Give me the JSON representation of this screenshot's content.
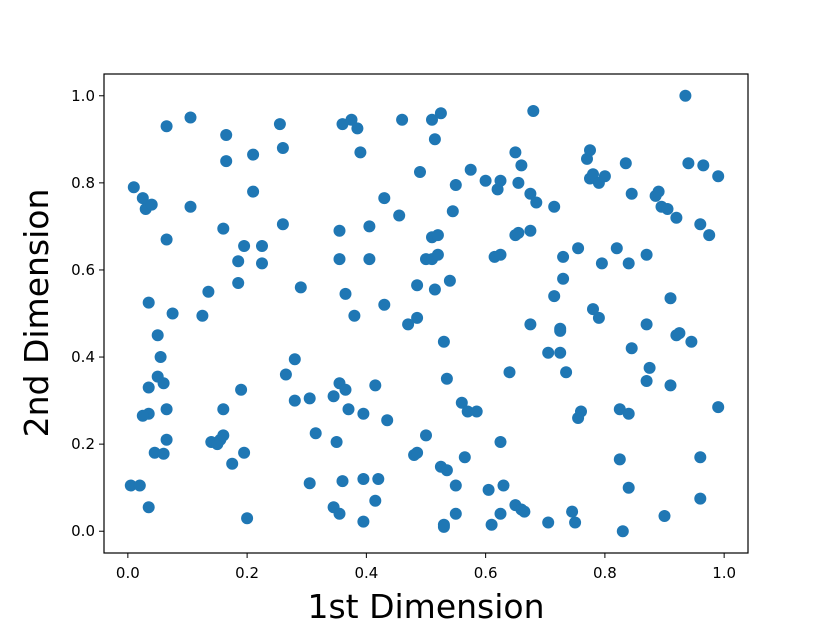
{
  "chart_data": {
    "type": "scatter",
    "title": "",
    "xlabel": "1st Dimension",
    "ylabel": "2nd Dimension",
    "xlim": [
      -0.04,
      1.04
    ],
    "ylim": [
      -0.05,
      1.05
    ],
    "xticks": [
      "0.0",
      "0.2",
      "0.4",
      "0.6",
      "0.8",
      "1.0"
    ],
    "yticks": [
      "0.0",
      "0.2",
      "0.4",
      "0.6",
      "0.8",
      "1.0"
    ],
    "grid": false,
    "marker_color": "#1f77b4",
    "points": [
      [
        0.01,
        0.79
      ],
      [
        0.025,
        0.765
      ],
      [
        0.03,
        0.74
      ],
      [
        0.04,
        0.75
      ],
      [
        0.065,
        0.93
      ],
      [
        0.105,
        0.95
      ],
      [
        0.165,
        0.91
      ],
      [
        0.165,
        0.85
      ],
      [
        0.21,
        0.865
      ],
      [
        0.255,
        0.935
      ],
      [
        0.26,
        0.88
      ],
      [
        0.21,
        0.78
      ],
      [
        0.105,
        0.745
      ],
      [
        0.065,
        0.67
      ],
      [
        0.16,
        0.695
      ],
      [
        0.195,
        0.655
      ],
      [
        0.225,
        0.655
      ],
      [
        0.185,
        0.62
      ],
      [
        0.225,
        0.615
      ],
      [
        0.26,
        0.705
      ],
      [
        0.185,
        0.57
      ],
      [
        0.135,
        0.55
      ],
      [
        0.125,
        0.495
      ],
      [
        0.075,
        0.5
      ],
      [
        0.035,
        0.525
      ],
      [
        0.05,
        0.45
      ],
      [
        0.055,
        0.4
      ],
      [
        0.05,
        0.355
      ],
      [
        0.06,
        0.34
      ],
      [
        0.035,
        0.33
      ],
      [
        0.065,
        0.28
      ],
      [
        0.035,
        0.27
      ],
      [
        0.025,
        0.265
      ],
      [
        0.065,
        0.21
      ],
      [
        0.045,
        0.18
      ],
      [
        0.06,
        0.178
      ],
      [
        0.005,
        0.105
      ],
      [
        0.02,
        0.105
      ],
      [
        0.035,
        0.055
      ],
      [
        0.14,
        0.205
      ],
      [
        0.15,
        0.2
      ],
      [
        0.155,
        0.21
      ],
      [
        0.16,
        0.22
      ],
      [
        0.16,
        0.28
      ],
      [
        0.19,
        0.325
      ],
      [
        0.195,
        0.18
      ],
      [
        0.175,
        0.155
      ],
      [
        0.2,
        0.03
      ],
      [
        0.265,
        0.36
      ],
      [
        0.28,
        0.395
      ],
      [
        0.28,
        0.3
      ],
      [
        0.29,
        0.56
      ],
      [
        0.305,
        0.305
      ],
      [
        0.315,
        0.225
      ],
      [
        0.305,
        0.11
      ],
      [
        0.36,
        0.935
      ],
      [
        0.375,
        0.945
      ],
      [
        0.385,
        0.925
      ],
      [
        0.39,
        0.87
      ],
      [
        0.355,
        0.69
      ],
      [
        0.355,
        0.625
      ],
      [
        0.365,
        0.545
      ],
      [
        0.38,
        0.495
      ],
      [
        0.43,
        0.765
      ],
      [
        0.455,
        0.725
      ],
      [
        0.405,
        0.7
      ],
      [
        0.405,
        0.625
      ],
      [
        0.43,
        0.52
      ],
      [
        0.345,
        0.31
      ],
      [
        0.355,
        0.34
      ],
      [
        0.365,
        0.325
      ],
      [
        0.37,
        0.28
      ],
      [
        0.395,
        0.27
      ],
      [
        0.415,
        0.335
      ],
      [
        0.435,
        0.255
      ],
      [
        0.35,
        0.205
      ],
      [
        0.36,
        0.115
      ],
      [
        0.395,
        0.12
      ],
      [
        0.42,
        0.12
      ],
      [
        0.415,
        0.07
      ],
      [
        0.345,
        0.055
      ],
      [
        0.355,
        0.04
      ],
      [
        0.395,
        0.022
      ],
      [
        0.46,
        0.945
      ],
      [
        0.51,
        0.945
      ],
      [
        0.525,
        0.96
      ],
      [
        0.515,
        0.9
      ],
      [
        0.49,
        0.825
      ],
      [
        0.55,
        0.795
      ],
      [
        0.545,
        0.735
      ],
      [
        0.51,
        0.675
      ],
      [
        0.52,
        0.68
      ],
      [
        0.5,
        0.625
      ],
      [
        0.51,
        0.625
      ],
      [
        0.52,
        0.635
      ],
      [
        0.54,
        0.575
      ],
      [
        0.515,
        0.555
      ],
      [
        0.485,
        0.565
      ],
      [
        0.485,
        0.49
      ],
      [
        0.47,
        0.475
      ],
      [
        0.53,
        0.435
      ],
      [
        0.535,
        0.35
      ],
      [
        0.56,
        0.295
      ],
      [
        0.57,
        0.275
      ],
      [
        0.585,
        0.275
      ],
      [
        0.5,
        0.22
      ],
      [
        0.48,
        0.175
      ],
      [
        0.485,
        0.18
      ],
      [
        0.525,
        0.148
      ],
      [
        0.535,
        0.14
      ],
      [
        0.565,
        0.17
      ],
      [
        0.55,
        0.105
      ],
      [
        0.53,
        0.015
      ],
      [
        0.53,
        0.01
      ],
      [
        0.55,
        0.04
      ],
      [
        0.575,
        0.83
      ],
      [
        0.6,
        0.805
      ],
      [
        0.62,
        0.785
      ],
      [
        0.625,
        0.805
      ],
      [
        0.65,
        0.87
      ],
      [
        0.66,
        0.84
      ],
      [
        0.655,
        0.8
      ],
      [
        0.675,
        0.775
      ],
      [
        0.685,
        0.755
      ],
      [
        0.68,
        0.965
      ],
      [
        0.615,
        0.63
      ],
      [
        0.625,
        0.635
      ],
      [
        0.65,
        0.68
      ],
      [
        0.655,
        0.685
      ],
      [
        0.675,
        0.69
      ],
      [
        0.675,
        0.475
      ],
      [
        0.64,
        0.365
      ],
      [
        0.625,
        0.205
      ],
      [
        0.605,
        0.095
      ],
      [
        0.63,
        0.105
      ],
      [
        0.61,
        0.015
      ],
      [
        0.625,
        0.04
      ],
      [
        0.65,
        0.06
      ],
      [
        0.66,
        0.05
      ],
      [
        0.665,
        0.045
      ],
      [
        0.715,
        0.745
      ],
      [
        0.73,
        0.63
      ],
      [
        0.73,
        0.58
      ],
      [
        0.715,
        0.54
      ],
      [
        0.755,
        0.65
      ],
      [
        0.725,
        0.465
      ],
      [
        0.725,
        0.46
      ],
      [
        0.705,
        0.41
      ],
      [
        0.725,
        0.41
      ],
      [
        0.735,
        0.365
      ],
      [
        0.76,
        0.275
      ],
      [
        0.755,
        0.26
      ],
      [
        0.705,
        0.02
      ],
      [
        0.745,
        0.045
      ],
      [
        0.75,
        0.02
      ],
      [
        0.77,
        0.855
      ],
      [
        0.775,
        0.875
      ],
      [
        0.775,
        0.81
      ],
      [
        0.78,
        0.82
      ],
      [
        0.79,
        0.8
      ],
      [
        0.8,
        0.815
      ],
      [
        0.835,
        0.845
      ],
      [
        0.845,
        0.775
      ],
      [
        0.82,
        0.65
      ],
      [
        0.795,
        0.615
      ],
      [
        0.84,
        0.615
      ],
      [
        0.78,
        0.51
      ],
      [
        0.79,
        0.49
      ],
      [
        0.845,
        0.42
      ],
      [
        0.825,
        0.28
      ],
      [
        0.84,
        0.27
      ],
      [
        0.825,
        0.165
      ],
      [
        0.84,
        0.1
      ],
      [
        0.83,
        0.0
      ],
      [
        0.885,
        0.77
      ],
      [
        0.89,
        0.78
      ],
      [
        0.895,
        0.745
      ],
      [
        0.905,
        0.74
      ],
      [
        0.92,
        0.72
      ],
      [
        0.935,
        1.0
      ],
      [
        0.94,
        0.845
      ],
      [
        0.965,
        0.84
      ],
      [
        0.99,
        0.815
      ],
      [
        0.96,
        0.705
      ],
      [
        0.975,
        0.68
      ],
      [
        0.87,
        0.635
      ],
      [
        0.87,
        0.475
      ],
      [
        0.875,
        0.375
      ],
      [
        0.87,
        0.345
      ],
      [
        0.91,
        0.535
      ],
      [
        0.92,
        0.45
      ],
      [
        0.925,
        0.455
      ],
      [
        0.945,
        0.435
      ],
      [
        0.91,
        0.335
      ],
      [
        0.99,
        0.285
      ],
      [
        0.96,
        0.17
      ],
      [
        0.9,
        0.035
      ],
      [
        0.96,
        0.075
      ]
    ]
  }
}
